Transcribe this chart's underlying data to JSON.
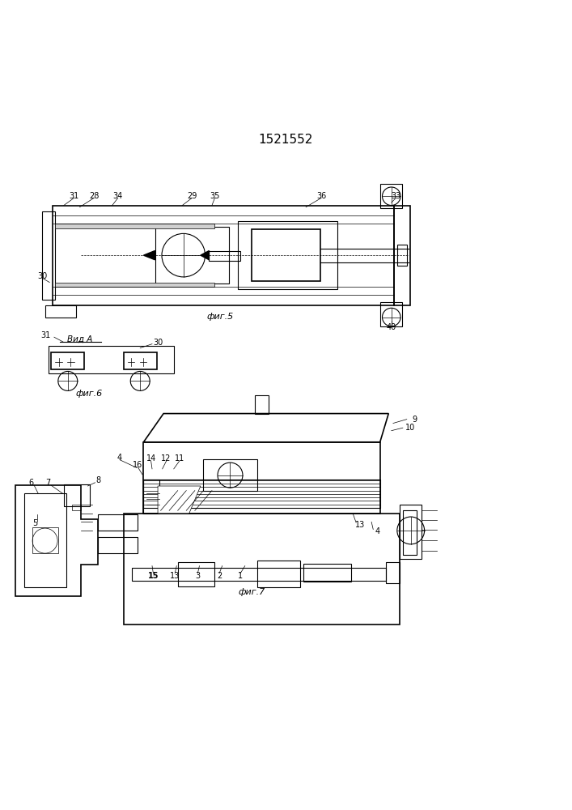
{
  "title": "1521552",
  "title_fontsize": 11,
  "bg_color": "#ffffff",
  "line_color": "#000000",
  "line_width": 0.8,
  "thin_line": 0.5,
  "thick_line": 1.2,
  "fig5_caption": "фиг.5",
  "fig6_caption": "фиг.6",
  "fig7_caption": "фиг.7",
  "vid_a_text": "Вид А"
}
